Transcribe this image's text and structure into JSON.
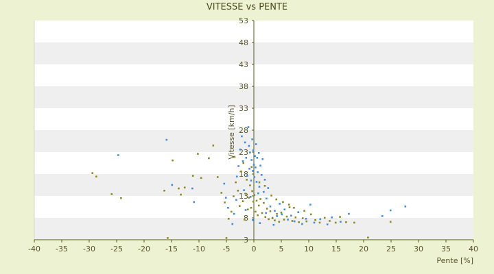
{
  "chart_data": {
    "type": "scatter",
    "title": "VITESSE vs PENTE",
    "xlabel": "Pente [%]",
    "ylabel": "Vitesse [km/h]",
    "xlim": [
      -40,
      40
    ],
    "ylim": [
      3,
      53
    ],
    "xticks": [
      -40,
      -35,
      -30,
      -25,
      -20,
      -15,
      -10,
      -5,
      0,
      5,
      10,
      15,
      20,
      25,
      30,
      35,
      40
    ],
    "yticks": [
      3,
      8,
      13,
      18,
      23,
      28,
      33,
      38,
      43,
      48,
      53
    ],
    "grid": "alternating horizontal bands",
    "legend": "none",
    "colors": {
      "background": "#edf2d2",
      "plot_band_light": "#ffffff",
      "plot_band_dark": "#efefef",
      "axis": "#4f5a14",
      "series_blue": "#3a8ee6",
      "series_olive": "#8a8a1e"
    },
    "series": [
      {
        "color": "#3a8ee6",
        "points": [
          [
            -15.9,
            25.8
          ],
          [
            -24.7,
            22.3
          ],
          [
            -14.9,
            15.5
          ],
          [
            -11.2,
            14.7
          ],
          [
            -10.9,
            11.6
          ],
          [
            -5.4,
            15.8
          ],
          [
            -5.1,
            12.6
          ],
          [
            -4.7,
            10.3
          ],
          [
            -3.9,
            6.6
          ],
          [
            -3.6,
            8.9
          ],
          [
            -3.2,
            12.1
          ],
          [
            -3.1,
            17.4
          ],
          [
            -2.8,
            19.8
          ],
          [
            -2.5,
            23.6
          ],
          [
            -2.2,
            26.6
          ],
          [
            -2.0,
            20.9
          ],
          [
            -1.8,
            14.3
          ],
          [
            -1.6,
            25.2
          ],
          [
            -1.4,
            21.7
          ],
          [
            -1.2,
            17.6
          ],
          [
            -1.0,
            28.7
          ],
          [
            -0.9,
            24.4
          ],
          [
            -0.8,
            19.2
          ],
          [
            -0.7,
            22.9
          ],
          [
            -0.6,
            12.8
          ],
          [
            -0.5,
            16.5
          ],
          [
            -0.4,
            21.2
          ],
          [
            -0.3,
            25.9
          ],
          [
            -0.2,
            18.7
          ],
          [
            -0.1,
            23.4
          ],
          [
            0.0,
            20.1
          ],
          [
            0.1,
            17.3
          ],
          [
            0.2,
            22.1
          ],
          [
            0.3,
            19.5
          ],
          [
            0.4,
            24.8
          ],
          [
            0.5,
            16.2
          ],
          [
            0.6,
            21.7
          ],
          [
            0.7,
            18.4
          ],
          [
            0.8,
            13.6
          ],
          [
            0.9,
            22.8
          ],
          [
            1.0,
            15.1
          ],
          [
            1.2,
            19.9
          ],
          [
            1.4,
            17.8
          ],
          [
            1.6,
            21.4
          ],
          [
            1.8,
            13.9
          ],
          [
            2.0,
            16.7
          ],
          [
            2.3,
            12.4
          ],
          [
            2.6,
            14.8
          ],
          [
            3.0,
            10.6
          ],
          [
            3.4,
            7.9
          ],
          [
            3.8,
            9.6
          ],
          [
            4.2,
            8.4
          ],
          [
            4.7,
            11.2
          ],
          [
            5.1,
            8.8
          ],
          [
            5.6,
            9.9
          ],
          [
            6.2,
            7.6
          ],
          [
            6.8,
            8.5
          ],
          [
            7.4,
            7.2
          ],
          [
            8.1,
            9.3
          ],
          [
            8.8,
            6.6
          ],
          [
            9.5,
            7.8
          ],
          [
            10.3,
            11.0
          ],
          [
            11.0,
            6.9
          ],
          [
            12.1,
            7.7
          ],
          [
            13.4,
            6.5
          ],
          [
            14.2,
            8.1
          ],
          [
            15.8,
            7.1
          ],
          [
            17.3,
            8.9
          ],
          [
            23.4,
            8.4
          ],
          [
            24.9,
            9.7
          ],
          [
            27.6,
            10.6
          ],
          [
            1.1,
            6.8
          ],
          [
            -0.2,
            7.5
          ],
          [
            2.2,
            9.1
          ],
          [
            3.6,
            6.4
          ],
          [
            -1.5,
            9.8
          ]
        ]
      },
      {
        "color": "#8a8a1e",
        "points": [
          [
            -29.4,
            18.2
          ],
          [
            -28.7,
            17.4
          ],
          [
            -25.9,
            13.4
          ],
          [
            -24.2,
            12.5
          ],
          [
            -16.3,
            14.2
          ],
          [
            -15.7,
            3.4
          ],
          [
            -14.8,
            21.1
          ],
          [
            -13.7,
            14.7
          ],
          [
            -13.3,
            13.3
          ],
          [
            -12.6,
            14.9
          ],
          [
            -11.1,
            17.6
          ],
          [
            -10.2,
            22.6
          ],
          [
            -9.6,
            17.1
          ],
          [
            -8.2,
            21.6
          ],
          [
            -7.4,
            24.5
          ],
          [
            -6.6,
            17.3
          ],
          [
            -5.9,
            13.7
          ],
          [
            -5.3,
            11.5
          ],
          [
            -5.0,
            3.4
          ],
          [
            -4.6,
            7.8
          ],
          [
            -4.1,
            9.4
          ],
          [
            -3.7,
            12.9
          ],
          [
            -3.3,
            16.1
          ],
          [
            -2.9,
            14.2
          ],
          [
            -2.6,
            10.7
          ],
          [
            -2.3,
            18.6
          ],
          [
            -2.0,
            11.8
          ],
          [
            -1.7,
            7.6
          ],
          [
            -1.5,
            13.5
          ],
          [
            -1.3,
            16.7
          ],
          [
            -1.1,
            9.9
          ],
          [
            -0.9,
            12.6
          ],
          [
            -0.7,
            15.4
          ],
          [
            -0.5,
            10.3
          ],
          [
            -0.3,
            14.1
          ],
          [
            -0.1,
            11.7
          ],
          [
            0.1,
            13.2
          ],
          [
            0.3,
            9.4
          ],
          [
            0.5,
            11.9
          ],
          [
            0.7,
            8.6
          ],
          [
            0.9,
            10.8
          ],
          [
            1.2,
            12.3
          ],
          [
            1.5,
            9.1
          ],
          [
            1.8,
            11.4
          ],
          [
            2.1,
            8.2
          ],
          [
            2.4,
            10.1
          ],
          [
            2.7,
            7.7
          ],
          [
            3.0,
            9.5
          ],
          [
            3.4,
            8.0
          ],
          [
            3.8,
            7.4
          ],
          [
            4.2,
            8.9
          ],
          [
            4.6,
            7.1
          ],
          [
            5.0,
            9.2
          ],
          [
            5.5,
            7.6
          ],
          [
            6.0,
            8.3
          ],
          [
            6.5,
            10.4
          ],
          [
            7.0,
            7.3
          ],
          [
            7.6,
            8.1
          ],
          [
            8.2,
            7.0
          ],
          [
            8.9,
            7.9
          ],
          [
            9.6,
            7.2
          ],
          [
            10.4,
            8.8
          ],
          [
            11.2,
            7.5
          ],
          [
            12.0,
            6.9
          ],
          [
            12.9,
            8.0
          ],
          [
            13.8,
            7.3
          ],
          [
            14.9,
            6.9
          ],
          [
            15.7,
            8.2
          ],
          [
            16.8,
            7.0
          ],
          [
            18.3,
            6.9
          ],
          [
            20.8,
            3.5
          ],
          [
            24.9,
            7.1
          ],
          [
            2.0,
            15.3
          ],
          [
            3.2,
            13.1
          ],
          [
            4.1,
            12.2
          ],
          [
            5.3,
            11.6
          ],
          [
            6.4,
            11.0
          ],
          [
            7.3,
            10.3
          ],
          [
            9.2,
            9.6
          ],
          [
            1.0,
            16.1
          ],
          [
            -0.4,
            19.6
          ],
          [
            -1.9,
            20.5
          ],
          [
            -3.5,
            21.9
          ]
        ]
      }
    ]
  }
}
